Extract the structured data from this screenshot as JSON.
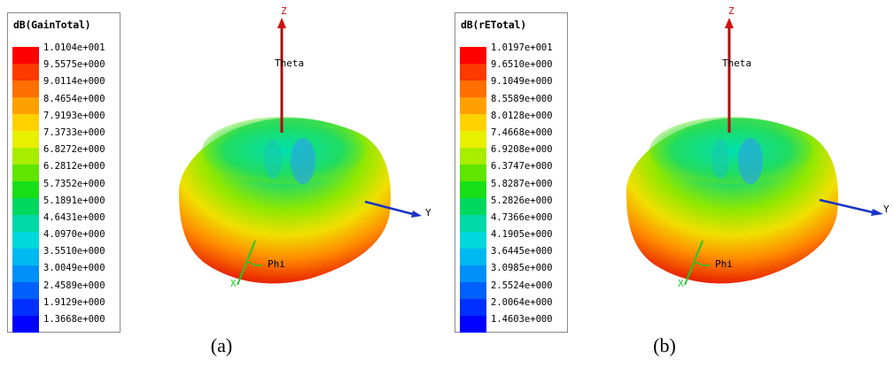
{
  "panels": [
    {
      "legend": {
        "title": "dB(GainTotal)",
        "values": [
          "1.0104e+001",
          "9.5575e+000",
          "9.0114e+000",
          "8.4654e+000",
          "7.9193e+000",
          "7.3733e+000",
          "6.8272e+000",
          "6.2812e+000",
          "5.7352e+000",
          "5.1891e+000",
          "4.6431e+000",
          "4.0970e+000",
          "3.5510e+000",
          "3.0049e+000",
          "2.4589e+000",
          "1.9129e+000",
          "1.3668e+000"
        ]
      },
      "axes": {
        "z": "Z",
        "theta": "Theta",
        "y": "Y",
        "phi": "Phi",
        "x": "X"
      },
      "caption": "(a)"
    },
    {
      "legend": {
        "title": "dB(rETotal)",
        "values": [
          "1.0197e+001",
          "9.6510e+000",
          "9.1049e+000",
          "8.5589e+000",
          "8.0128e+000",
          "7.4668e+000",
          "6.9208e+000",
          "6.3747e+000",
          "5.8287e+000",
          "5.2826e+000",
          "4.7366e+000",
          "4.1905e+000",
          "3.6445e+000",
          "3.0985e+000",
          "2.5524e+000",
          "2.0064e+000",
          "1.4603e+000"
        ]
      },
      "axes": {
        "z": "Z",
        "theta": "Theta",
        "y": "Y",
        "phi": "Phi",
        "x": "X"
      },
      "caption": "(b)"
    }
  ],
  "colors": {
    "scale": [
      "#ff0000",
      "#ff3a00",
      "#ff6f00",
      "#ffa000",
      "#ffd200",
      "#e8f000",
      "#a8ec00",
      "#5fe500",
      "#18df18",
      "#00d860",
      "#00d8a8",
      "#00d8dc",
      "#00b8f0",
      "#0090f8",
      "#0060fc",
      "#0030fe",
      "#0000ff"
    ],
    "z_axis": "#aa1010",
    "y_axis": "#1a34c8",
    "x_axis": "#22c82a"
  }
}
